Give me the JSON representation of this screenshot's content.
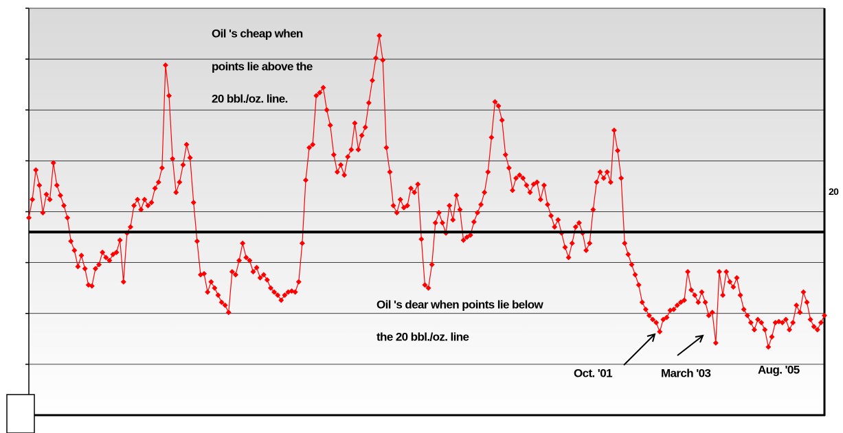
{
  "chart_data": {
    "type": "line",
    "color": "#ff0000",
    "values": [
      21.4,
      23.2,
      26.1,
      24.6,
      21.9,
      23.7,
      23.2,
      26.8,
      24.6,
      23.6,
      22.6,
      21.4,
      19.1,
      18.2,
      16.6,
      17.7,
      16.4,
      14.8,
      14.7,
      16.4,
      16.8,
      18.0,
      17.5,
      17.2,
      17.8,
      18.0,
      19.2,
      15.1,
      19.9,
      20.5,
      22.6,
      23.2,
      22.2,
      23.2,
      22.6,
      22.9,
      24.3,
      24.9,
      26.3,
      36.4,
      33.4,
      27.2,
      23.9,
      24.9,
      26.6,
      28.6,
      27.3,
      22.9,
      19.1,
      15.8,
      15.9,
      14.1,
      15.1,
      14.5,
      13.8,
      13.1,
      12.8,
      12.1,
      16.1,
      15.8,
      17.2,
      18.9,
      17.5,
      17.2,
      16.1,
      16.5,
      15.5,
      15.8,
      15.3,
      14.5,
      14.1,
      13.8,
      13.3,
      13.8,
      14.1,
      14.2,
      14.1,
      15.1,
      18.9,
      25.1,
      28.3,
      28.6,
      33.4,
      33.7,
      34.2,
      32.0,
      30.5,
      27.6,
      25.9,
      26.6,
      25.6,
      27.4,
      28.1,
      30.7,
      28.1,
      29.5,
      30.3,
      32.7,
      34.9,
      37.1,
      39.3,
      36.9,
      28.3,
      25.9,
      22.6,
      21.9,
      23.2,
      22.4,
      22.6,
      24.3,
      23.9,
      24.7,
      19.3,
      14.8,
      14.5,
      16.8,
      20.9,
      21.9,
      20.9,
      19.9,
      22.6,
      21.2,
      23.6,
      22.2,
      19.2,
      19.5,
      19.7,
      21.0,
      21.9,
      22.7,
      23.9,
      25.9,
      29.3,
      32.8,
      32.4,
      31.0,
      27.6,
      26.3,
      24.1,
      25.3,
      25.6,
      25.3,
      24.6,
      23.9,
      24.7,
      24.9,
      23.2,
      24.6,
      22.7,
      21.6,
      20.5,
      21.2,
      19.9,
      18.5,
      17.5,
      18.9,
      20.5,
      20.9,
      19.9,
      18.2,
      18.9,
      22.2,
      24.9,
      25.9,
      25.3,
      25.9,
      24.9,
      30.0,
      28.0,
      25.3,
      18.9,
      17.8,
      16.8,
      15.8,
      14.8,
      13.1,
      12.4,
      11.8,
      11.4,
      11.1,
      10.2,
      11.4,
      11.6,
      12.3,
      12.4,
      12.8,
      13.1,
      13.3,
      16.1,
      14.3,
      13.8,
      13.1,
      14.1,
      13.1,
      11.8,
      12.1,
      9.1,
      16.1,
      13.8,
      16.1,
      15.1,
      14.6,
      15.5,
      13.8,
      12.4,
      11.8,
      11.1,
      10.4,
      11.4,
      11.1,
      10.4,
      8.7,
      9.7,
      11.1,
      11.2,
      11.1,
      11.4,
      10.4,
      11.1,
      12.8,
      12.1,
      14.1,
      13.1,
      11.4,
      10.7,
      10.4,
      11.1,
      11.8
    ],
    "ylim": [
      2,
      42
    ],
    "yticks": [
      2,
      7,
      12,
      17,
      22,
      27,
      32,
      37,
      42
    ],
    "grid": true,
    "reference_line": {
      "value": 20,
      "label": "20"
    },
    "annotations": [
      "Oil 's cheap when",
      "points lie above the",
      "20 bbl./oz. line.",
      "Oil 's dear when points lie below",
      "the 20 bbl./oz. line",
      "Oct. '01",
      "March '03",
      "Aug. '05"
    ]
  }
}
